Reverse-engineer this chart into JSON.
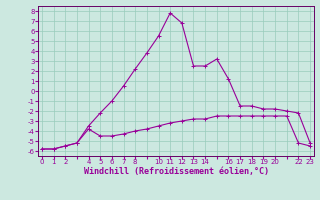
{
  "xlabel": "Windchill (Refroidissement éolien,°C)",
  "background_color": "#cce8e0",
  "grid_color": "#99ccbb",
  "line_color": "#990099",
  "spine_color": "#660066",
  "hours": [
    0,
    1,
    2,
    3,
    4,
    5,
    6,
    7,
    8,
    9,
    10,
    11,
    12,
    13,
    14,
    15,
    16,
    17,
    18,
    19,
    20,
    21,
    22,
    23
  ],
  "actual_temp": [
    -5.8,
    -5.8,
    -5.5,
    -5.2,
    -3.8,
    -4.5,
    -4.5,
    -4.3,
    -4.0,
    -3.8,
    -3.5,
    -3.2,
    -3.0,
    -2.8,
    -2.8,
    -2.5,
    -2.5,
    -2.5,
    -2.5,
    -2.5,
    -2.5,
    -2.5,
    -5.2,
    -5.5
  ],
  "windchill": [
    -5.8,
    -5.8,
    -5.5,
    -5.2,
    -3.5,
    -2.2,
    -1.0,
    0.5,
    2.2,
    3.8,
    5.5,
    7.8,
    6.8,
    2.5,
    2.5,
    3.2,
    1.2,
    -1.5,
    -1.5,
    -1.8,
    -1.8,
    -2.0,
    -2.2,
    -5.2
  ],
  "ylim": [
    -6.5,
    8.5
  ],
  "xlim": [
    -0.3,
    23.3
  ],
  "yticks": [
    -6,
    -5,
    -4,
    -3,
    -2,
    -1,
    0,
    1,
    2,
    3,
    4,
    5,
    6,
    7,
    8
  ],
  "xtick_groups": [
    "0",
    "1",
    "2",
    "",
    "4",
    "5",
    "6",
    "7",
    "8",
    "",
    "10",
    "11",
    "12",
    "13",
    "14",
    "",
    "16",
    "17",
    "18",
    "19",
    "20",
    "",
    "22",
    "23"
  ],
  "xtick_positions": [
    0,
    1,
    2,
    3,
    4,
    5,
    6,
    7,
    8,
    9,
    10,
    11,
    12,
    13,
    14,
    15,
    16,
    17,
    18,
    19,
    20,
    21,
    22,
    23
  ],
  "tick_fontsize": 5.0,
  "xlabel_fontsize": 6.0,
  "marker_size": 3.0,
  "line_width": 0.8
}
